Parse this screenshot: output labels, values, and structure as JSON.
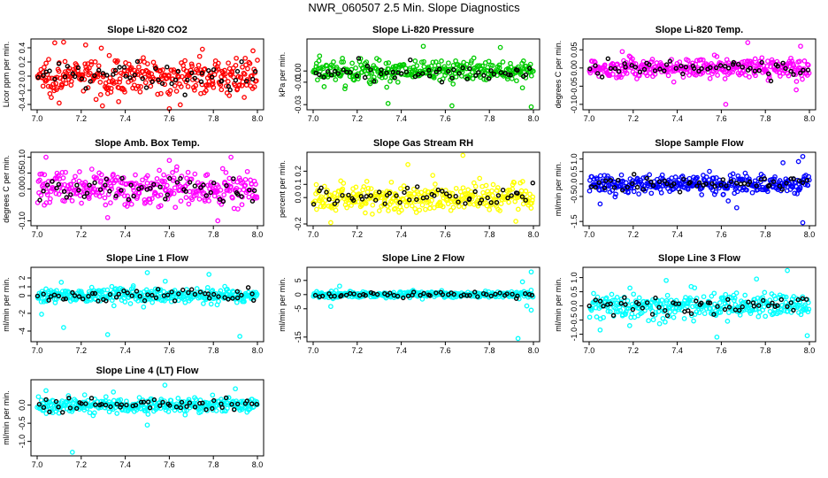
{
  "title": "NWR_060507  2.5 Min. Slope Diagnostics",
  "chart_data": [
    {
      "type": "scatter",
      "title": "Slope Li-820 CO2",
      "ylabel": "Licor ppm per min.",
      "color": "#ff0000",
      "xlim": [
        7.0,
        8.0
      ],
      "ylim": [
        -0.45,
        0.5
      ],
      "x_ticks": [
        "7.0",
        "7.2",
        "7.4",
        "7.6",
        "7.8",
        "8.0"
      ],
      "y_ticks": [
        {
          "v": -0.4,
          "t": "-0.4"
        },
        {
          "v": -0.2,
          "t": "-0.2"
        },
        {
          "v": 0.0,
          "t": "0.0"
        },
        {
          "v": 0.2,
          "t": "0.2"
        },
        {
          "v": 0.4,
          "t": "0.4"
        }
      ],
      "spread": 0.16,
      "outliers": [
        [
          7.08,
          0.47
        ],
        [
          7.12,
          0.48
        ],
        [
          7.1,
          -0.38
        ],
        [
          7.6,
          -0.46
        ],
        [
          7.37,
          -0.36
        ],
        [
          7.75,
          0.38
        ],
        [
          7.94,
          -0.3
        ],
        [
          7.22,
          0.44
        ]
      ]
    },
    {
      "type": "scatter",
      "title": "Slope Li-820 Pressure",
      "ylabel": "kPa per min.",
      "color": "#00cc00",
      "xlim": [
        7.0,
        8.0
      ],
      "ylim": [
        -0.033,
        0.027
      ],
      "x_ticks": [
        "7.0",
        "7.2",
        "7.4",
        "7.6",
        "7.8",
        "8.0"
      ],
      "y_ticks": [
        {
          "v": -0.03,
          "t": "-0.03"
        },
        {
          "v": -0.01,
          "t": "-0.01"
        },
        {
          "v": 0.0,
          "t": "0.00"
        }
      ],
      "spread": 0.007,
      "outliers": [
        [
          7.34,
          -0.029
        ],
        [
          7.63,
          -0.031
        ],
        [
          7.99,
          -0.032
        ],
        [
          7.5,
          0.022
        ],
        [
          7.85,
          0.021
        ],
        [
          7.05,
          -0.014
        ],
        [
          7.95,
          -0.015
        ]
      ]
    },
    {
      "type": "scatter",
      "title": "Slope Li-820 Temp.",
      "ylabel": "degrees C per min.",
      "color": "#ff00ff",
      "xlim": [
        7.0,
        8.0
      ],
      "ylim": [
        -0.11,
        0.075
      ],
      "x_ticks": [
        "7.0",
        "7.2",
        "7.4",
        "7.6",
        "7.8",
        "8.0"
      ],
      "y_ticks": [
        {
          "v": -0.1,
          "t": "-0.10"
        },
        {
          "v": -0.05,
          "t": "-0.05"
        },
        {
          "v": 0.0,
          "t": "0.00"
        },
        {
          "v": 0.05,
          "t": "0.05"
        }
      ],
      "spread": 0.018,
      "outliers": [
        [
          7.62,
          -0.1
        ],
        [
          7.72,
          0.07
        ],
        [
          7.96,
          0.06
        ],
        [
          7.94,
          -0.06
        ],
        [
          7.15,
          0.045
        ]
      ]
    },
    {
      "type": "scatter",
      "title": "Slope Amb. Box Temp.",
      "ylabel": "degrees C per min.",
      "color": "#ff00ff",
      "xlim": [
        7.0,
        8.0
      ],
      "ylim": [
        -0.11,
        0.11
      ],
      "x_ticks": [
        "7.0",
        "7.2",
        "7.4",
        "7.6",
        "7.8",
        "8.0"
      ],
      "y_ticks": [
        {
          "v": -0.1,
          "t": "-0.10"
        },
        {
          "v": 0.0,
          "t": "0.00"
        },
        {
          "v": 0.05,
          "t": "0.05"
        },
        {
          "v": 0.1,
          "t": "0.10"
        }
      ],
      "spread": 0.035,
      "outliers": [
        [
          7.04,
          0.1
        ],
        [
          7.88,
          0.1
        ],
        [
          7.82,
          -0.1
        ],
        [
          7.32,
          -0.09
        ],
        [
          7.6,
          0.09
        ]
      ]
    },
    {
      "type": "scatter",
      "title": "Slope Gas Stream RH",
      "ylabel": "percent per min.",
      "color": "#ffff00",
      "xlim": [
        7.0,
        8.0
      ],
      "ylim": [
        -0.2,
        0.33
      ],
      "x_ticks": [
        "7.0",
        "7.2",
        "7.4",
        "7.6",
        "7.8",
        "8.0"
      ],
      "y_ticks": [
        {
          "v": -0.2,
          "t": "-0.2"
        },
        {
          "v": 0.0,
          "t": "0.0"
        },
        {
          "v": 0.1,
          "t": "0.1"
        },
        {
          "v": 0.2,
          "t": "0.2"
        }
      ],
      "spread": 0.07,
      "outliers": [
        [
          7.68,
          0.32
        ],
        [
          7.08,
          -0.19
        ],
        [
          7.92,
          -0.18
        ],
        [
          7.43,
          0.25
        ]
      ]
    },
    {
      "type": "scatter",
      "title": "Slope Sample Flow",
      "ylabel": "ml/min per min.",
      "color": "#0000ff",
      "xlim": [
        7.0,
        8.0
      ],
      "ylim": [
        -1.6,
        1.2
      ],
      "x_ticks": [
        "7.0",
        "7.2",
        "7.4",
        "7.6",
        "7.8",
        "8.0"
      ],
      "y_ticks": [
        {
          "v": -1.5,
          "t": "-1.5"
        },
        {
          "v": -0.5,
          "t": "-0.5"
        },
        {
          "v": 0.0,
          "t": "0.0"
        },
        {
          "v": 0.5,
          "t": "0.5"
        },
        {
          "v": 1.0,
          "t": "1.0"
        }
      ],
      "spread": 0.25,
      "outliers": [
        [
          7.97,
          -1.55
        ],
        [
          7.97,
          1.1
        ],
        [
          7.95,
          0.9
        ],
        [
          7.88,
          0.85
        ],
        [
          7.67,
          -0.95
        ],
        [
          7.05,
          -0.8
        ]
      ]
    },
    {
      "type": "scatter",
      "title": "Slope Line 1 Flow",
      "ylabel": "ml/min per min.",
      "color": "#00ffff",
      "xlim": [
        7.0,
        8.0
      ],
      "ylim": [
        -5.0,
        3.0
      ],
      "x_ticks": [
        "7.0",
        "7.2",
        "7.4",
        "7.6",
        "7.8",
        "8.0"
      ],
      "y_ticks": [
        {
          "v": -4,
          "t": "-4"
        },
        {
          "v": -2,
          "t": "-2"
        },
        {
          "v": 0,
          "t": "0"
        },
        {
          "v": 1,
          "t": "1"
        },
        {
          "v": 2,
          "t": "2"
        }
      ],
      "spread": 0.55,
      "outliers": [
        [
          7.92,
          -4.6
        ],
        [
          7.32,
          -4.4
        ],
        [
          7.5,
          2.6
        ],
        [
          7.78,
          2.4
        ],
        [
          7.12,
          -3.6
        ],
        [
          7.02,
          -2.1
        ]
      ]
    },
    {
      "type": "scatter",
      "title": "Slope Line 2 Flow",
      "ylabel": "ml/min per min.",
      "color": "#00ffff",
      "xlim": [
        7.0,
        8.0
      ],
      "ylim": [
        -16.0,
        9.0
      ],
      "x_ticks": [
        "7.0",
        "7.2",
        "7.4",
        "7.6",
        "7.8",
        "8.0"
      ],
      "y_ticks": [
        {
          "v": -15,
          "t": "-15"
        },
        {
          "v": -5,
          "t": "-5"
        },
        {
          "v": 0,
          "t": "0"
        },
        {
          "v": 5,
          "t": "5"
        }
      ],
      "spread": 0.7,
      "outliers": [
        [
          7.93,
          -15.5
        ],
        [
          7.99,
          8.0
        ],
        [
          7.99,
          -5.5
        ],
        [
          7.95,
          4.5
        ],
        [
          7.08,
          -4.2
        ],
        [
          7.12,
          3.0
        ],
        [
          7.97,
          -4.0
        ]
      ]
    },
    {
      "type": "scatter",
      "title": "Slope Line 3 Flow",
      "ylabel": "ml/min per min.",
      "color": "#00ffff",
      "xlim": [
        7.0,
        8.0
      ],
      "ylim": [
        -1.2,
        1.3
      ],
      "x_ticks": [
        "7.0",
        "7.2",
        "7.4",
        "7.6",
        "7.8",
        "8.0"
      ],
      "y_ticks": [
        {
          "v": -1.0,
          "t": "-1.0"
        },
        {
          "v": -0.5,
          "t": "-0.5"
        },
        {
          "v": 0.0,
          "t": "0.0"
        },
        {
          "v": 0.5,
          "t": "0.5"
        },
        {
          "v": 1.0,
          "t": "1.0"
        }
      ],
      "spread": 0.3,
      "outliers": [
        [
          7.9,
          1.25
        ],
        [
          7.99,
          -1.05
        ],
        [
          7.58,
          -1.1
        ],
        [
          7.76,
          0.95
        ],
        [
          7.05,
          -0.85
        ],
        [
          7.35,
          0.9
        ]
      ]
    },
    {
      "type": "scatter",
      "title": "Slope Line 4 (LT) Flow",
      "ylabel": "ml/min per min.",
      "color": "#00ffff",
      "xlim": [
        7.0,
        8.0
      ],
      "ylim": [
        -1.35,
        0.65
      ],
      "x_ticks": [
        "7.0",
        "7.2",
        "7.4",
        "7.6",
        "7.8",
        "8.0"
      ],
      "y_ticks": [
        {
          "v": -1.0,
          "t": "-1.0"
        },
        {
          "v": -0.5,
          "t": "-0.5"
        },
        {
          "v": 0.0,
          "t": "0.0"
        }
      ],
      "spread": 0.14,
      "outliers": [
        [
          7.16,
          -1.3
        ],
        [
          7.5,
          -0.55
        ],
        [
          7.58,
          0.55
        ],
        [
          7.04,
          0.4
        ],
        [
          7.9,
          0.45
        ]
      ]
    }
  ]
}
